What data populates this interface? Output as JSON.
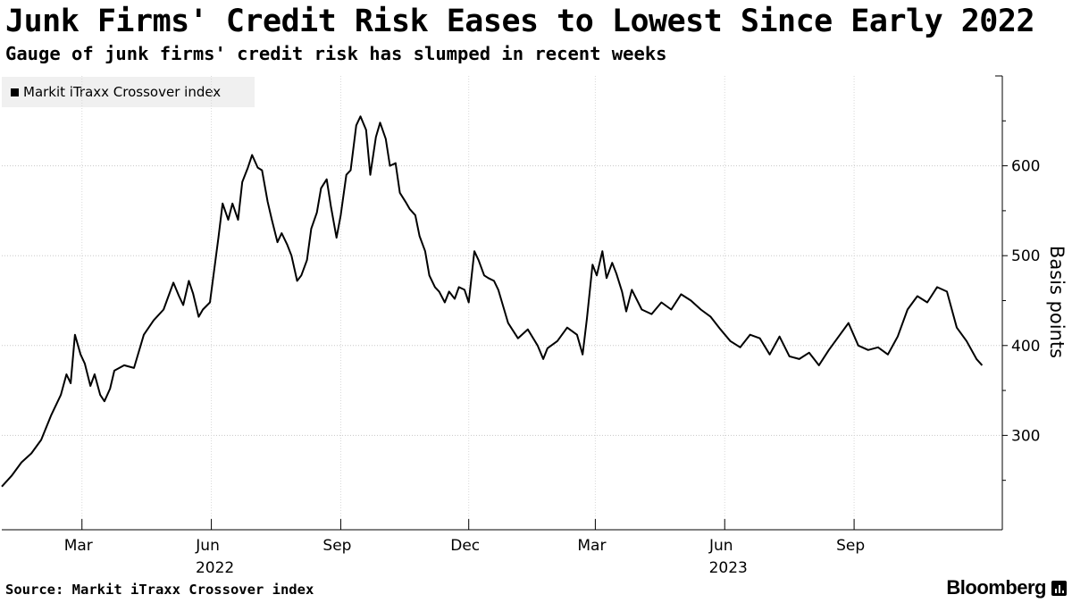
{
  "chart_data": {
    "type": "line",
    "title": "Junk Firms' Credit Risk Eases to Lowest Since Early 2022",
    "subtitle": "Gauge of junk firms' credit risk has slumped in recent weeks",
    "ylabel": "Basis points",
    "xlabel": "",
    "ylim": [
      195,
      700
    ],
    "yticks": [
      300,
      400,
      500,
      600
    ],
    "grid": "horizontal",
    "legend_position": "top-left",
    "x_domain": [
      "2022-01-03",
      "2023-11-06"
    ],
    "x_ticks": [
      {
        "date": "2022-03-01",
        "label": "Mar"
      },
      {
        "date": "2022-06-01",
        "label": "Jun"
      },
      {
        "date": "2022-09-01",
        "label": "Sep"
      },
      {
        "date": "2022-12-01",
        "label": "Dec"
      },
      {
        "date": "2023-03-01",
        "label": "Mar"
      },
      {
        "date": "2023-06-01",
        "label": "Jun"
      },
      {
        "date": "2023-09-01",
        "label": "Sep"
      }
    ],
    "year_labels": [
      {
        "date": "2022-06-01",
        "label": "2022"
      },
      {
        "date": "2023-06-01",
        "label": "2023"
      }
    ],
    "series": [
      {
        "name": "Markit iTraxx Crossover index",
        "color": "#000000",
        "points": [
          [
            "2022-01-03",
            243
          ],
          [
            "2022-01-10",
            255
          ],
          [
            "2022-01-17",
            270
          ],
          [
            "2022-01-24",
            280
          ],
          [
            "2022-01-31",
            295
          ],
          [
            "2022-02-07",
            322
          ],
          [
            "2022-02-14",
            345
          ],
          [
            "2022-02-18",
            368
          ],
          [
            "2022-02-21",
            358
          ],
          [
            "2022-02-24",
            412
          ],
          [
            "2022-02-28",
            390
          ],
          [
            "2022-03-03",
            380
          ],
          [
            "2022-03-07",
            355
          ],
          [
            "2022-03-10",
            368
          ],
          [
            "2022-03-14",
            345
          ],
          [
            "2022-03-17",
            338
          ],
          [
            "2022-03-21",
            352
          ],
          [
            "2022-03-24",
            372
          ],
          [
            "2022-03-31",
            378
          ],
          [
            "2022-04-07",
            375
          ],
          [
            "2022-04-14",
            412
          ],
          [
            "2022-04-21",
            428
          ],
          [
            "2022-04-28",
            440
          ],
          [
            "2022-05-05",
            470
          ],
          [
            "2022-05-09",
            455
          ],
          [
            "2022-05-12",
            445
          ],
          [
            "2022-05-16",
            472
          ],
          [
            "2022-05-19",
            458
          ],
          [
            "2022-05-23",
            432
          ],
          [
            "2022-05-26",
            440
          ],
          [
            "2022-05-31",
            448
          ],
          [
            "2022-06-06",
            520
          ],
          [
            "2022-06-09",
            558
          ],
          [
            "2022-06-13",
            540
          ],
          [
            "2022-06-16",
            558
          ],
          [
            "2022-06-20",
            540
          ],
          [
            "2022-06-23",
            582
          ],
          [
            "2022-06-27",
            598
          ],
          [
            "2022-06-30",
            612
          ],
          [
            "2022-07-04",
            598
          ],
          [
            "2022-07-07",
            595
          ],
          [
            "2022-07-11",
            560
          ],
          [
            "2022-07-14",
            540
          ],
          [
            "2022-07-18",
            515
          ],
          [
            "2022-07-21",
            525
          ],
          [
            "2022-07-25",
            512
          ],
          [
            "2022-07-28",
            500
          ],
          [
            "2022-08-01",
            472
          ],
          [
            "2022-08-04",
            478
          ],
          [
            "2022-08-08",
            495
          ],
          [
            "2022-08-11",
            530
          ],
          [
            "2022-08-15",
            548
          ],
          [
            "2022-08-18",
            575
          ],
          [
            "2022-08-22",
            585
          ],
          [
            "2022-08-25",
            555
          ],
          [
            "2022-08-29",
            520
          ],
          [
            "2022-09-01",
            545
          ],
          [
            "2022-09-05",
            590
          ],
          [
            "2022-09-08",
            595
          ],
          [
            "2022-09-12",
            645
          ],
          [
            "2022-09-15",
            655
          ],
          [
            "2022-09-19",
            640
          ],
          [
            "2022-09-22",
            590
          ],
          [
            "2022-09-26",
            632
          ],
          [
            "2022-09-29",
            648
          ],
          [
            "2022-10-03",
            630
          ],
          [
            "2022-10-06",
            600
          ],
          [
            "2022-10-10",
            603
          ],
          [
            "2022-10-13",
            570
          ],
          [
            "2022-10-17",
            560
          ],
          [
            "2022-10-20",
            552
          ],
          [
            "2022-10-24",
            545
          ],
          [
            "2022-10-27",
            522
          ],
          [
            "2022-10-31",
            505
          ],
          [
            "2022-11-03",
            478
          ],
          [
            "2022-11-07",
            465
          ],
          [
            "2022-11-10",
            460
          ],
          [
            "2022-11-14",
            448
          ],
          [
            "2022-11-17",
            460
          ],
          [
            "2022-11-21",
            452
          ],
          [
            "2022-11-24",
            465
          ],
          [
            "2022-11-28",
            462
          ],
          [
            "2022-12-01",
            448
          ],
          [
            "2022-12-05",
            505
          ],
          [
            "2022-12-08",
            495
          ],
          [
            "2022-12-12",
            478
          ],
          [
            "2022-12-15",
            475
          ],
          [
            "2022-12-19",
            472
          ],
          [
            "2022-12-22",
            462
          ],
          [
            "2022-12-29",
            425
          ],
          [
            "2023-01-05",
            408
          ],
          [
            "2023-01-12",
            418
          ],
          [
            "2023-01-19",
            400
          ],
          [
            "2023-01-23",
            385
          ],
          [
            "2023-01-26",
            397
          ],
          [
            "2023-02-02",
            405
          ],
          [
            "2023-02-09",
            420
          ],
          [
            "2023-02-16",
            412
          ],
          [
            "2023-02-20",
            390
          ],
          [
            "2023-02-23",
            430
          ],
          [
            "2023-02-27",
            490
          ],
          [
            "2023-03-02",
            478
          ],
          [
            "2023-03-06",
            505
          ],
          [
            "2023-03-09",
            475
          ],
          [
            "2023-03-13",
            492
          ],
          [
            "2023-03-16",
            480
          ],
          [
            "2023-03-20",
            460
          ],
          [
            "2023-03-23",
            438
          ],
          [
            "2023-03-27",
            462
          ],
          [
            "2023-04-03",
            440
          ],
          [
            "2023-04-10",
            435
          ],
          [
            "2023-04-17",
            448
          ],
          [
            "2023-04-24",
            440
          ],
          [
            "2023-05-01",
            457
          ],
          [
            "2023-05-08",
            450
          ],
          [
            "2023-05-15",
            440
          ],
          [
            "2023-05-22",
            432
          ],
          [
            "2023-05-29",
            418
          ],
          [
            "2023-06-05",
            405
          ],
          [
            "2023-06-12",
            398
          ],
          [
            "2023-06-19",
            412
          ],
          [
            "2023-06-26",
            408
          ],
          [
            "2023-07-03",
            390
          ],
          [
            "2023-07-10",
            410
          ],
          [
            "2023-07-17",
            388
          ],
          [
            "2023-07-24",
            385
          ],
          [
            "2023-07-31",
            392
          ],
          [
            "2023-08-07",
            378
          ],
          [
            "2023-08-14",
            395
          ],
          [
            "2023-08-21",
            410
          ],
          [
            "2023-08-28",
            425
          ],
          [
            "2023-09-04",
            400
          ],
          [
            "2023-09-11",
            395
          ],
          [
            "2023-09-18",
            398
          ],
          [
            "2023-09-25",
            390
          ],
          [
            "2023-10-02",
            410
          ],
          [
            "2023-10-09",
            440
          ],
          [
            "2023-10-16",
            455
          ],
          [
            "2023-10-23",
            448
          ],
          [
            "2023-10-30",
            465
          ],
          [
            "2023-11-06",
            460
          ],
          [
            "2023-11-13",
            420
          ],
          [
            "2023-11-20",
            405
          ],
          [
            "2023-11-27",
            385
          ],
          [
            "2023-12-01",
            378
          ]
        ]
      }
    ],
    "source": "Source: Markit iTraxx Crossover index"
  },
  "footer": {
    "source": "Source: Markit iTraxx Crossover index",
    "brand": "Bloomberg"
  },
  "brand_icon": "bloomberg-logo-icon"
}
